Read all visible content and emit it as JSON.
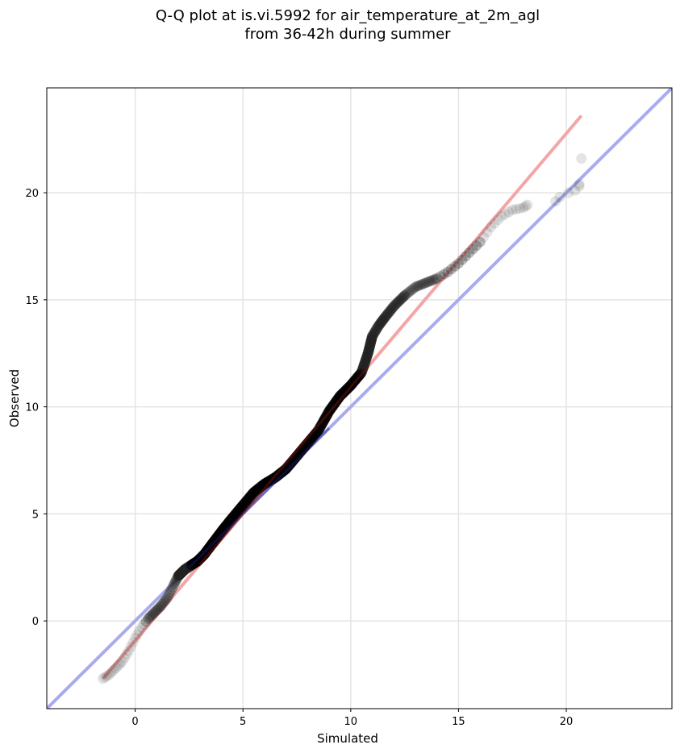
{
  "chart_data": {
    "type": "scatter",
    "title_lines": [
      "Q-Q plot at is.vi.5992 for air_temperature_at_2m_agl",
      "from 36-42h during summer"
    ],
    "xlabel": "Simulated",
    "ylabel": "Observed",
    "xlim": [
      -4.1,
      24.9
    ],
    "ylim": [
      -4.1,
      24.9
    ],
    "xticks": [
      0,
      5,
      10,
      15,
      20
    ],
    "yticks": [
      0,
      5,
      10,
      15,
      20
    ],
    "grid": true,
    "reference_lines": [
      {
        "name": "1:1 line",
        "color": "#aaaaf0",
        "x": [
          -4.1,
          24.9
        ],
        "y": [
          -4.1,
          24.9
        ]
      },
      {
        "name": "fit line",
        "color": "#f4a5a5",
        "x": [
          -1.5,
          20.7
        ],
        "y": [
          -2.7,
          23.6
        ]
      }
    ],
    "quantile_curve": {
      "x": [
        -1.5,
        -1.2,
        -0.9,
        -0.6,
        -0.3,
        0.0,
        0.3,
        0.6,
        0.9,
        1.2,
        1.5,
        1.8,
        2.0,
        2.3,
        2.6,
        2.9,
        3.2,
        3.5,
        3.8,
        4.1,
        4.5,
        5.0,
        5.5,
        6.0,
        6.5,
        7.0,
        7.5,
        8.0,
        8.5,
        9.0,
        9.5,
        10.0,
        10.5,
        10.8,
        11.0,
        11.3,
        11.6,
        12.0,
        12.5,
        13.0,
        13.5,
        14.0,
        14.5,
        15.0,
        15.5,
        16.0,
        16.5,
        17.0,
        17.5,
        18.0,
        18.3
      ],
      "y": [
        -2.7,
        -2.5,
        -2.2,
        -1.9,
        -1.4,
        -0.8,
        -0.3,
        0.1,
        0.4,
        0.7,
        1.1,
        1.7,
        2.1,
        2.4,
        2.6,
        2.8,
        3.1,
        3.5,
        3.9,
        4.3,
        4.8,
        5.4,
        6.0,
        6.4,
        6.7,
        7.1,
        7.7,
        8.3,
        8.9,
        9.8,
        10.5,
        11.0,
        11.6,
        12.5,
        13.3,
        13.8,
        14.2,
        14.7,
        15.2,
        15.6,
        15.8,
        16.0,
        16.3,
        16.7,
        17.2,
        17.7,
        18.4,
        18.9,
        19.2,
        19.3,
        19.5
      ]
    },
    "outlier_points": {
      "x": [
        19.5,
        19.7,
        20.1,
        20.4,
        20.6,
        20.6,
        20.7
      ],
      "y": [
        19.6,
        19.8,
        20.0,
        20.1,
        20.3,
        20.4,
        21.6
      ]
    },
    "point_color": "#222222",
    "mid_color": "#1a1a80"
  }
}
